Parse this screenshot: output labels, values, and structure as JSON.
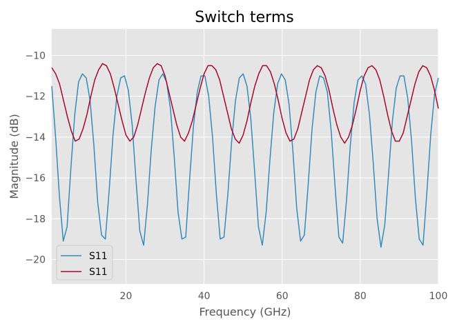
{
  "chart_data": {
    "type": "line",
    "title": "Switch terms",
    "xlabel": "Frequency (GHz)",
    "ylabel": "Magnitude (dB)",
    "xlim": [
      1,
      100
    ],
    "ylim": [
      -21.2,
      -8.7
    ],
    "xticks": [
      20,
      40,
      60,
      80,
      100
    ],
    "yticks": [
      -20,
      -18,
      -16,
      -14,
      -12,
      -10
    ],
    "grid": true,
    "legend_position": "lower-left",
    "x_range": [
      1,
      100
    ],
    "series": [
      {
        "name": "S11",
        "color": "#348ABD",
        "x_range": [
          1,
          100
        ],
        "values": [
          -11.5,
          -14.0,
          -16.9,
          -19.1,
          -18.4,
          -15.5,
          -12.9,
          -11.3,
          -10.9,
          -11.1,
          -12.2,
          -14.4,
          -17.2,
          -18.8,
          -19.0,
          -16.6,
          -13.9,
          -12.0,
          -11.1,
          -11.0,
          -11.7,
          -13.4,
          -16.1,
          -18.6,
          -19.3,
          -17.3,
          -14.6,
          -12.5,
          -11.2,
          -10.9,
          -11.3,
          -12.6,
          -15.0,
          -17.7,
          -19.0,
          -18.9,
          -16.1,
          -13.5,
          -11.8,
          -11.0,
          -11.0,
          -12.0,
          -14.0,
          -16.8,
          -19.0,
          -18.9,
          -16.8,
          -14.2,
          -12.2,
          -11.1,
          -10.9,
          -11.5,
          -13.1,
          -15.7,
          -18.4,
          -19.3,
          -17.7,
          -15.1,
          -12.8,
          -11.4,
          -10.9,
          -11.2,
          -12.4,
          -14.7,
          -17.5,
          -19.1,
          -18.8,
          -16.3,
          -13.6,
          -11.8,
          -11.0,
          -11.1,
          -11.8,
          -13.7,
          -16.4,
          -18.9,
          -19.2,
          -17.1,
          -14.4,
          -12.3,
          -11.2,
          -11.0,
          -11.4,
          -12.9,
          -15.3,
          -18.0,
          -19.4,
          -18.3,
          -15.8,
          -13.2,
          -11.6,
          -11.0,
          -11.0,
          -12.1,
          -14.2,
          -17.0,
          -19.0,
          -19.3,
          -16.7,
          -13.9,
          -11.9,
          -11.1
        ]
      },
      {
        "name": "S11",
        "color": "#A60628",
        "x_range": [
          1,
          100
        ],
        "values": [
          -10.6,
          -10.9,
          -11.4,
          -12.2,
          -13.0,
          -13.7,
          -14.2,
          -14.1,
          -13.6,
          -12.9,
          -12.0,
          -11.2,
          -10.7,
          -10.4,
          -10.5,
          -10.9,
          -11.6,
          -12.4,
          -13.2,
          -13.9,
          -14.2,
          -14.0,
          -13.4,
          -12.6,
          -11.8,
          -11.1,
          -10.6,
          -10.4,
          -10.5,
          -11.0,
          -11.8,
          -12.6,
          -13.4,
          -14.0,
          -14.2,
          -13.8,
          -13.2,
          -12.4,
          -11.6,
          -10.9,
          -10.5,
          -10.5,
          -10.7,
          -11.2,
          -12.0,
          -12.8,
          -13.6,
          -14.1,
          -14.3,
          -13.9,
          -13.2,
          -12.3,
          -11.5,
          -10.9,
          -10.5,
          -10.5,
          -10.8,
          -11.4,
          -12.2,
          -13.1,
          -13.8,
          -14.2,
          -14.1,
          -13.6,
          -12.8,
          -12.0,
          -11.2,
          -10.7,
          -10.5,
          -10.6,
          -11.0,
          -11.7,
          -12.6,
          -13.4,
          -14.0,
          -14.3,
          -14.0,
          -13.4,
          -12.6,
          -11.7,
          -11.0,
          -10.6,
          -10.5,
          -10.7,
          -11.2,
          -12.0,
          -12.9,
          -13.7,
          -14.2,
          -14.2,
          -13.8,
          -13.0,
          -12.2,
          -11.4,
          -10.8,
          -10.5,
          -10.6,
          -11.0,
          -11.7,
          -12.6
        ]
      }
    ]
  }
}
